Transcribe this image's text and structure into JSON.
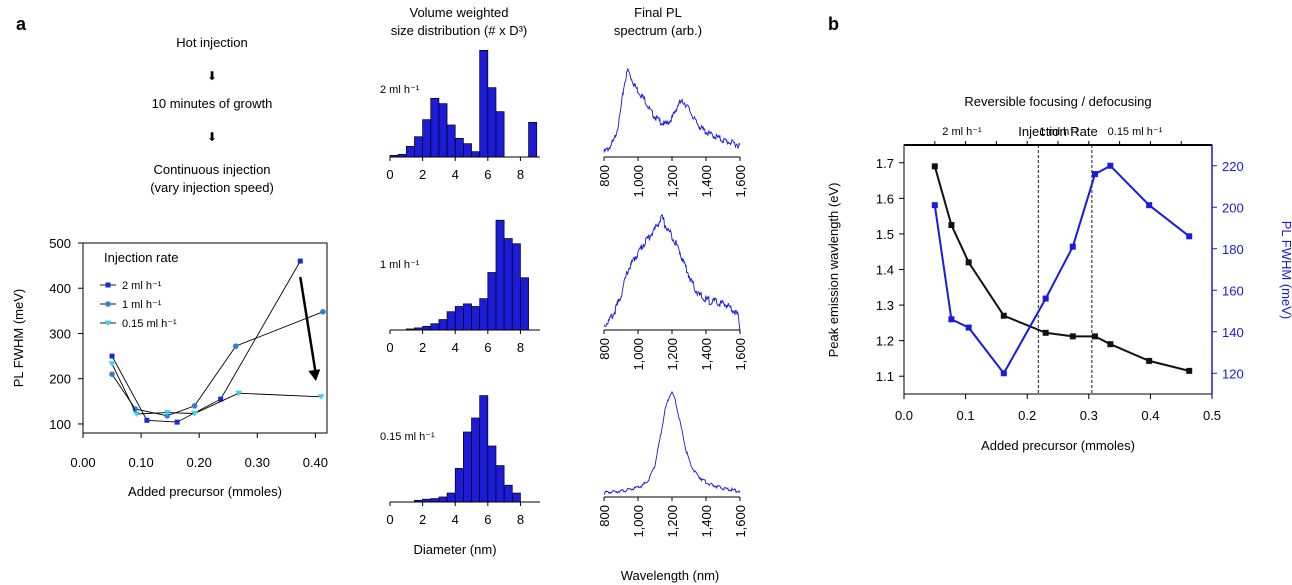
{
  "panel_a": {
    "label": "a",
    "flow": {
      "step1": "Hot injection",
      "arrow": "⬇",
      "step2": "10 minutes of growth",
      "step3_line1": "Continuous injection",
      "step3_line2": "(vary  injection speed)"
    },
    "col_headers": {
      "size_line1": "Volume weighted",
      "size_line2": "size distribution (# x D³)",
      "pl_line1": "Final PL",
      "pl_line2": "spectrum (arb.)"
    },
    "row_labels": [
      "2 ml h⁻¹",
      "1 ml h⁻¹",
      "0.15 ml h⁻¹"
    ],
    "size_xticks": [
      "0",
      "2",
      "4",
      "6",
      "8"
    ],
    "size_xlabel": "Diameter (nm)",
    "pl_xticks": [
      "800",
      "1,000",
      "1,200",
      "1,400",
      "1,600"
    ],
    "pl_xlabel": "Wavelength (nm)"
  },
  "panel_b": {
    "label": "b",
    "title": "Reversible focusing / defocusing",
    "top_axis_title": "Injection Rate",
    "rate_labels": [
      "2 ml h⁻¹",
      "1 ml h⁻¹",
      "0.15 ml h⁻¹"
    ]
  },
  "chart_data": [
    {
      "type": "line",
      "id": "fwhm_vs_precursor",
      "xlabel": "Added precursor (mmoles)",
      "ylabel": "PL FWHM (meV)",
      "xlim": [
        0.0,
        0.42
      ],
      "ylim": [
        80,
        500
      ],
      "xticks": [
        "0.00",
        "0.10",
        "0.20",
        "0.30",
        "0.40"
      ],
      "xtick_values": [
        0.0,
        0.1,
        0.2,
        0.3,
        0.4
      ],
      "yticks": [
        "100",
        "200",
        "300",
        "400",
        "500"
      ],
      "ytick_values": [
        100,
        200,
        300,
        400,
        500
      ],
      "legend_title": "Injection rate",
      "legend_position": "top-left",
      "arrow": {
        "from": [
          0.374,
          425
        ],
        "to": [
          0.401,
          195
        ]
      },
      "series": [
        {
          "name": "2 ml h⁻¹",
          "color": "#1a2cd0",
          "marker": "square",
          "x": [
            0.05,
            0.11,
            0.162,
            0.237,
            0.374
          ],
          "y": [
            250,
            108,
            104,
            155,
            460
          ]
        },
        {
          "name": "1 ml h⁻¹",
          "color": "#2f7fd6",
          "marker": "circle",
          "x": [
            0.05,
            0.09,
            0.145,
            0.192,
            0.263,
            0.413
          ],
          "y": [
            210,
            133,
            118,
            140,
            272,
            348
          ]
        },
        {
          "name": "0.15 ml h⁻¹",
          "color": "#33d6f0",
          "marker": "triangle-down",
          "x": [
            0.05,
            0.092,
            0.145,
            0.192,
            0.268,
            0.41
          ],
          "y": [
            233,
            122,
            125,
            123,
            168,
            160
          ]
        }
      ]
    },
    {
      "type": "bar",
      "id": "size_2ml",
      "xlim": [
        0,
        9.2
      ],
      "x": [
        0.25,
        0.75,
        1.25,
        1.75,
        2.25,
        2.75,
        3.25,
        3.75,
        4.25,
        4.75,
        5.25,
        5.75,
        6.25,
        6.75,
        8.75
      ],
      "values": [
        0.3,
        0.5,
        2.0,
        3.8,
        7.0,
        11.0,
        10.0,
        6.0,
        3.5,
        2.5,
        1.0,
        20.0,
        13.0,
        8.5,
        6.5
      ],
      "ylim": [
        0,
        21
      ]
    },
    {
      "type": "bar",
      "id": "size_1ml",
      "xlim": [
        0,
        9.2
      ],
      "x": [
        1.25,
        1.75,
        2.25,
        2.75,
        3.25,
        3.75,
        4.25,
        4.75,
        5.25,
        5.75,
        6.25,
        6.75,
        7.25,
        7.75,
        8.25
      ],
      "values": [
        0.2,
        0.4,
        0.7,
        1.2,
        2.0,
        3.5,
        4.5,
        5.0,
        4.5,
        6.0,
        11.0,
        21.0,
        17.5,
        16.5,
        10.0
      ],
      "ylim": [
        0,
        22
      ]
    },
    {
      "type": "bar",
      "id": "size_015ml",
      "xlim": [
        0,
        9.2
      ],
      "x": [
        1.75,
        2.25,
        2.75,
        3.25,
        3.75,
        4.25,
        4.75,
        5.25,
        5.75,
        6.25,
        6.75,
        7.25,
        7.75
      ],
      "values": [
        0.3,
        0.5,
        0.6,
        0.9,
        1.6,
        6.0,
        12.5,
        15.0,
        19.0,
        10.0,
        6.5,
        3.0,
        1.6
      ],
      "ylim": [
        0,
        20
      ]
    },
    {
      "type": "line",
      "id": "pl_2ml",
      "xlim": [
        800,
        1600
      ],
      "ylim": [
        0,
        1
      ],
      "x": [
        800,
        830,
        860,
        890,
        920,
        940,
        960,
        980,
        1000,
        1040,
        1080,
        1120,
        1160,
        1200,
        1240,
        1270,
        1300,
        1340,
        1380,
        1420,
        1460,
        1500,
        1540,
        1580,
        1600
      ],
      "y": [
        0.05,
        0.1,
        0.18,
        0.4,
        0.8,
        0.95,
        0.86,
        0.78,
        0.72,
        0.62,
        0.48,
        0.4,
        0.35,
        0.42,
        0.58,
        0.6,
        0.52,
        0.38,
        0.3,
        0.25,
        0.22,
        0.18,
        0.16,
        0.14,
        0.12
      ]
    },
    {
      "type": "line",
      "id": "pl_1ml",
      "xlim": [
        800,
        1600
      ],
      "ylim": [
        0,
        1
      ],
      "x": [
        800,
        830,
        860,
        900,
        940,
        980,
        1020,
        1060,
        1100,
        1140,
        1170,
        1200,
        1240,
        1280,
        1320,
        1360,
        1400,
        1440,
        1480,
        1520,
        1560,
        1590,
        1600
      ],
      "y": [
        0.04,
        0.08,
        0.15,
        0.3,
        0.52,
        0.62,
        0.72,
        0.8,
        0.88,
        0.98,
        0.88,
        0.82,
        0.7,
        0.55,
        0.4,
        0.3,
        0.26,
        0.25,
        0.23,
        0.22,
        0.18,
        0.12,
        0.02
      ]
    },
    {
      "type": "line",
      "id": "pl_015ml",
      "xlim": [
        800,
        1600
      ],
      "ylim": [
        0,
        1
      ],
      "x": [
        800,
        860,
        920,
        980,
        1020,
        1060,
        1100,
        1130,
        1160,
        1190,
        1200,
        1220,
        1250,
        1280,
        1310,
        1340,
        1380,
        1420,
        1460,
        1500,
        1540,
        1580,
        1600
      ],
      "y": [
        0.04,
        0.05,
        0.06,
        0.08,
        0.1,
        0.15,
        0.3,
        0.55,
        0.82,
        0.97,
        0.98,
        0.9,
        0.68,
        0.45,
        0.3,
        0.22,
        0.16,
        0.12,
        0.1,
        0.08,
        0.07,
        0.06,
        0.05
      ]
    },
    {
      "type": "line",
      "id": "focusing_defocusing",
      "xlabel": "Added precursor (mmoles)",
      "ylabel": "Peak emission wavlength  (eV)",
      "y2label": "PL FWHM (meV)",
      "xlim": [
        0.0,
        0.5
      ],
      "ylim": [
        1.05,
        1.75
      ],
      "y2lim": [
        110,
        230
      ],
      "xticks": [
        "0.0",
        "0.1",
        "0.2",
        "0.3",
        "0.4",
        "0.5"
      ],
      "xtick_values": [
        0.0,
        0.1,
        0.2,
        0.3,
        0.4,
        0.5
      ],
      "yticks": [
        "1.1",
        "1.2",
        "1.3",
        "1.4",
        "1.5",
        "1.6",
        "1.7"
      ],
      "ytick_values": [
        1.1,
        1.2,
        1.3,
        1.4,
        1.5,
        1.6,
        1.7
      ],
      "y2ticks": [
        "120",
        "140",
        "160",
        "180",
        "200",
        "220"
      ],
      "y2tick_values": [
        120,
        140,
        160,
        180,
        200,
        220
      ],
      "dividers_x": [
        0.218,
        0.305
      ],
      "series": [
        {
          "name": "Peak emission",
          "axis": "left",
          "color": "#111111",
          "x": [
            0.05,
            0.077,
            0.105,
            0.162,
            0.23,
            0.274,
            0.31,
            0.335,
            0.398,
            0.463
          ],
          "y": [
            1.69,
            1.525,
            1.42,
            1.27,
            1.222,
            1.212,
            1.212,
            1.19,
            1.143,
            1.115
          ]
        },
        {
          "name": "PL FWHM",
          "axis": "right",
          "color": "#1a1ae0",
          "x": [
            0.05,
            0.077,
            0.105,
            0.162,
            0.23,
            0.274,
            0.31,
            0.335,
            0.398,
            0.463
          ],
          "y": [
            201,
            146,
            142,
            120,
            156,
            181,
            216,
            220,
            201,
            186
          ]
        }
      ]
    }
  ]
}
